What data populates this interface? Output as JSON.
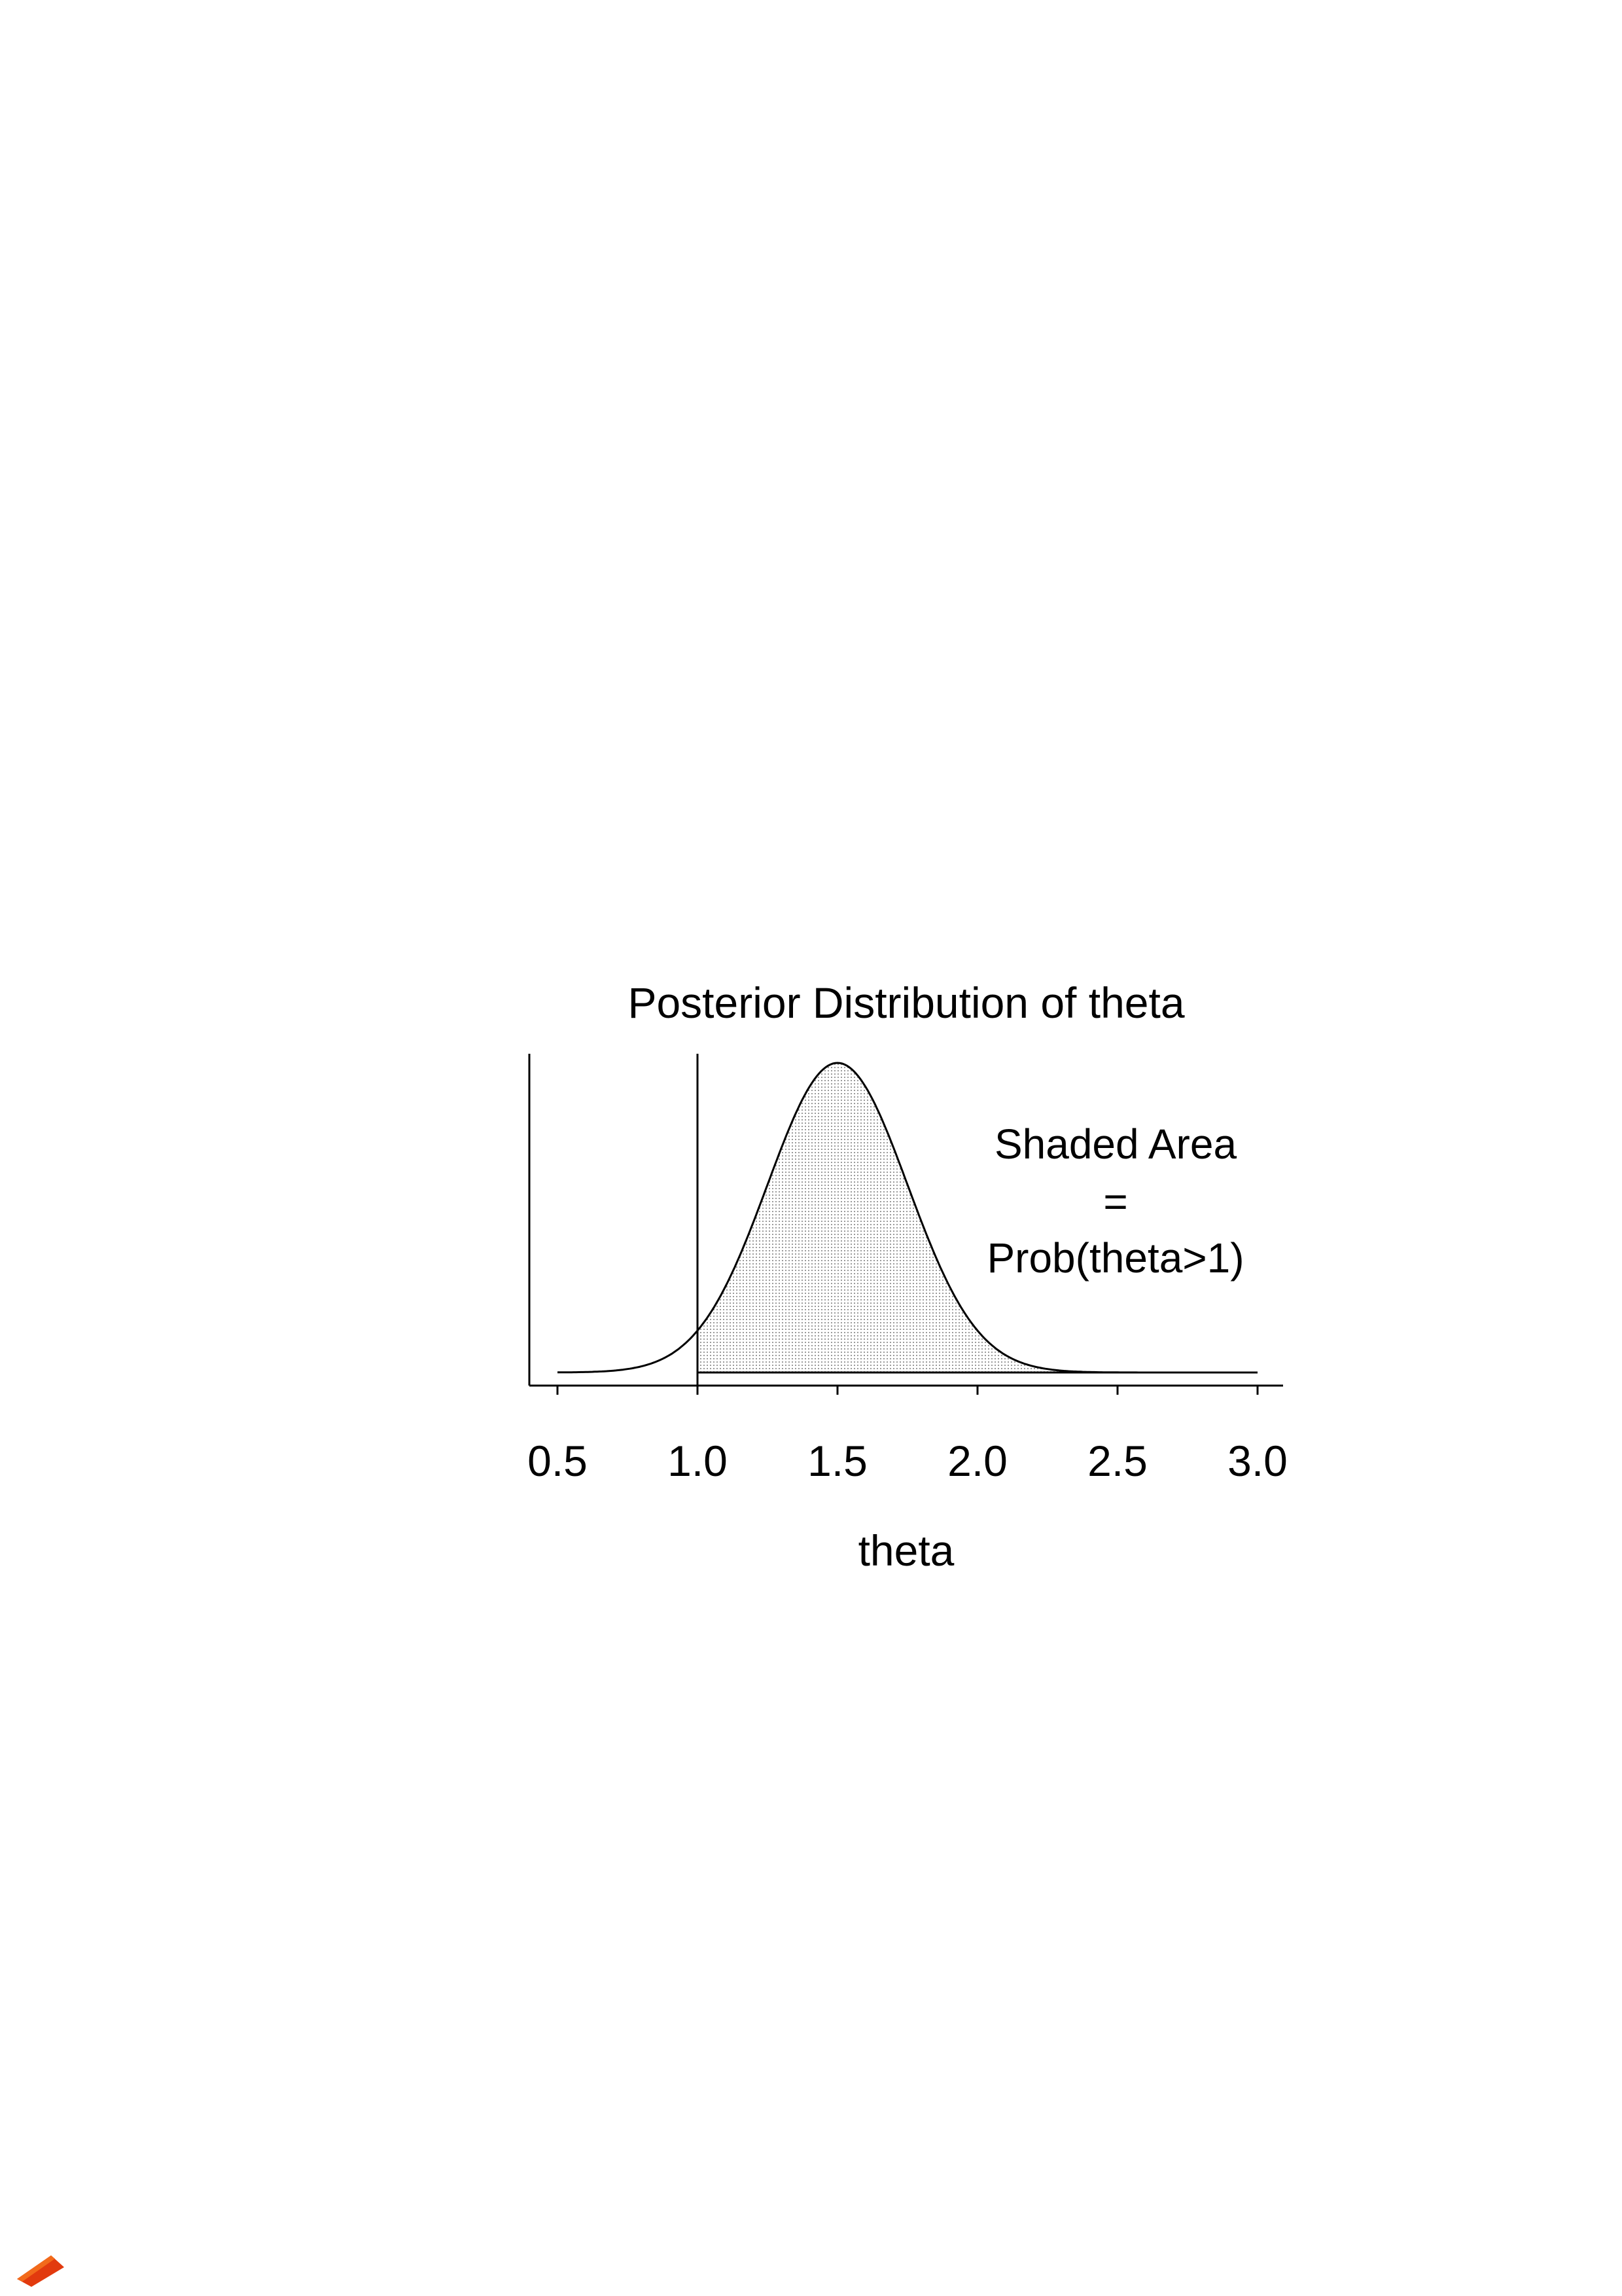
{
  "chart_data": {
    "type": "area",
    "title": "Posterior Distribution of theta",
    "xlabel": "theta",
    "ylabel": "",
    "x_ticks": [
      0.5,
      1.0,
      1.5,
      2.0,
      2.5,
      3.0
    ],
    "x_tick_labels": [
      "0.5",
      "1.0",
      "1.5",
      "2.0",
      "2.5",
      "3.0"
    ],
    "xlim": [
      0.4,
      3.1
    ],
    "x_range": [
      0.5,
      3.0
    ],
    "density": {
      "distribution": "normal",
      "mean": 1.5,
      "sd": 0.25
    },
    "shaded_region": {
      "from": 1.0,
      "to": 3.0,
      "fill": "dotted light gray"
    },
    "reference_line_x": 1.0,
    "annotation": [
      "Shaded Area",
      "=",
      "Prob(theta>1)"
    ],
    "grid": false,
    "legend": "none"
  },
  "colors": {
    "line": "#000000",
    "shade": "#c8c8c8",
    "background": "#ffffff",
    "logo": "#e23a0e"
  },
  "logo": {
    "icon": "converter-badge-icon"
  }
}
